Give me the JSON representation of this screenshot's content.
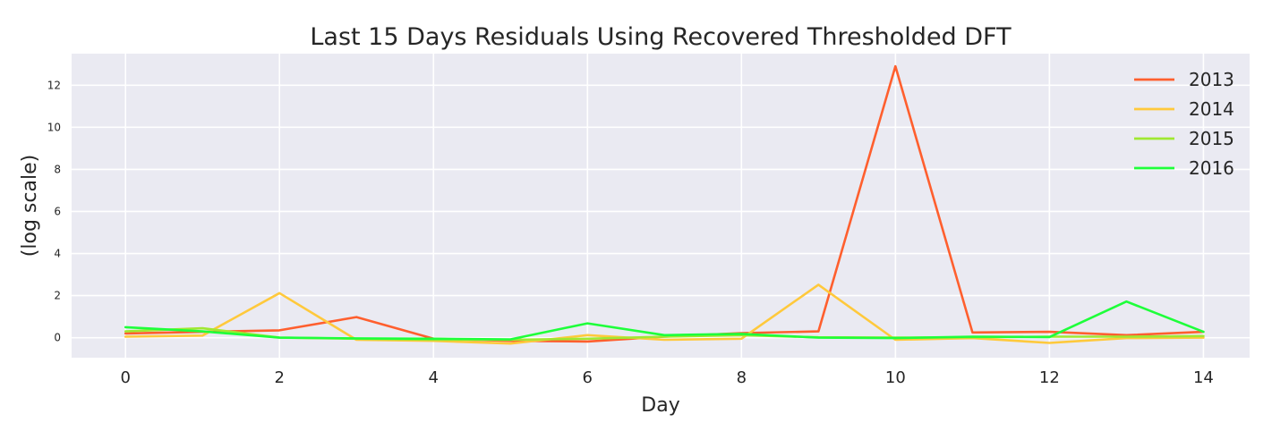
{
  "chart_data": {
    "type": "line",
    "title": "Last 15 Days Residuals Using Recovered Thresholded DFT",
    "xlabel": "Day",
    "ylabel": "(log scale)",
    "x": [
      0,
      1,
      2,
      3,
      4,
      5,
      6,
      7,
      8,
      9,
      10,
      11,
      12,
      13,
      14
    ],
    "xlim": [
      -0.7,
      14.6
    ],
    "ylim": [
      -0.95,
      13.5
    ],
    "xticks": [
      0,
      2,
      4,
      6,
      8,
      10,
      12,
      14
    ],
    "yticks": [
      0,
      2,
      4,
      6,
      8,
      10,
      12
    ],
    "grid": true,
    "legend_position": "top-right",
    "series": [
      {
        "name": "2013",
        "color": "#ff5f2e",
        "values": [
          0.2,
          0.28,
          0.35,
          0.98,
          -0.05,
          -0.15,
          -0.18,
          0.05,
          0.22,
          0.3,
          12.9,
          0.25,
          0.28,
          0.12,
          0.28
        ]
      },
      {
        "name": "2014",
        "color": "#ffc93c",
        "values": [
          0.05,
          0.1,
          2.12,
          -0.1,
          -0.15,
          -0.28,
          0.12,
          -0.1,
          -0.05,
          2.52,
          -0.1,
          -0.02,
          -0.25,
          -0.02,
          0.0
        ]
      },
      {
        "name": "2015",
        "color": "#a0e832",
        "values": [
          0.3,
          0.45,
          0.0,
          -0.05,
          -0.1,
          -0.1,
          -0.05,
          0.05,
          0.12,
          0.02,
          0.0,
          0.02,
          0.05,
          0.05,
          0.08
        ]
      },
      {
        "name": "2016",
        "color": "#1eff3a",
        "values": [
          0.5,
          0.3,
          0.0,
          -0.03,
          -0.05,
          -0.08,
          0.68,
          0.12,
          0.18,
          0.0,
          -0.02,
          0.05,
          0.03,
          1.72,
          0.28
        ]
      }
    ]
  }
}
